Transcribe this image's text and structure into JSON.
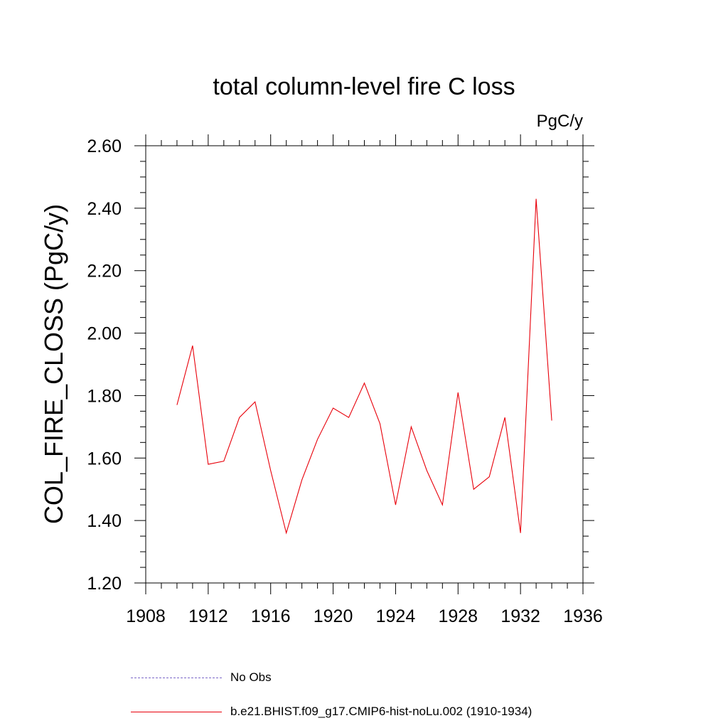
{
  "chart_data": {
    "type": "line",
    "title": "total column-level fire C loss",
    "units_label": "PgC/y",
    "ylabel": "COL_FIRE_CLOSS  (PgC/y)",
    "xlabel": "",
    "xlim": [
      1908,
      1936
    ],
    "ylim": [
      1.2,
      2.6
    ],
    "x_ticks": [
      1908,
      1912,
      1916,
      1920,
      1924,
      1928,
      1932,
      1936
    ],
    "x_tick_labels": [
      "1908",
      "1912",
      "1916",
      "1920",
      "1924",
      "1928",
      "1932",
      "1936"
    ],
    "y_ticks": [
      1.2,
      1.4,
      1.6,
      1.8,
      2.0,
      2.2,
      2.4,
      2.6
    ],
    "y_tick_labels": [
      "1.20",
      "1.40",
      "1.60",
      "1.80",
      "2.00",
      "2.20",
      "2.40",
      "2.60"
    ],
    "grid": false,
    "legend_position": "bottom",
    "series": [
      {
        "name": "b.e21.BHIST.f09_g17.CMIP6-hist-noLu.002 (1910-1934)",
        "color": "#e8000a",
        "style": "solid",
        "x": [
          1910,
          1911,
          1912,
          1913,
          1914,
          1915,
          1916,
          1917,
          1918,
          1919,
          1920,
          1921,
          1922,
          1923,
          1924,
          1925,
          1926,
          1927,
          1928,
          1929,
          1930,
          1931,
          1932,
          1933,
          1934
        ],
        "values": [
          1.77,
          1.96,
          1.58,
          1.59,
          1.73,
          1.78,
          1.56,
          1.36,
          1.53,
          1.66,
          1.76,
          1.73,
          1.84,
          1.71,
          1.45,
          1.7,
          1.56,
          1.45,
          1.81,
          1.5,
          1.54,
          1.73,
          1.36,
          2.43,
          1.72
        ]
      }
    ],
    "legend": [
      {
        "label": "No Obs",
        "color": "#7b68c8",
        "style": "dashed"
      },
      {
        "label": "b.e21.BHIST.f09_g17.CMIP6-hist-noLu.002 (1910-1934)",
        "color": "#e8000a",
        "style": "solid"
      }
    ]
  }
}
